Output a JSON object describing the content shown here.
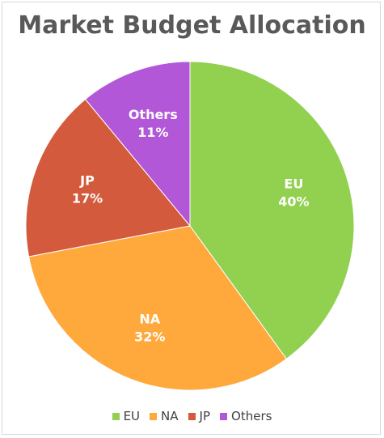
{
  "chart_data": {
    "type": "pie",
    "title": "Market Budget Allocation",
    "categories": [
      "EU",
      "NA",
      "JP",
      "Others"
    ],
    "values": [
      40,
      32,
      17,
      11
    ],
    "labels": [
      "40%",
      "32%",
      "17%",
      "11%"
    ],
    "colors": [
      "#92d050",
      "#ffa83b",
      "#d35a3c",
      "#b257d7"
    ],
    "legend_position": "bottom"
  }
}
